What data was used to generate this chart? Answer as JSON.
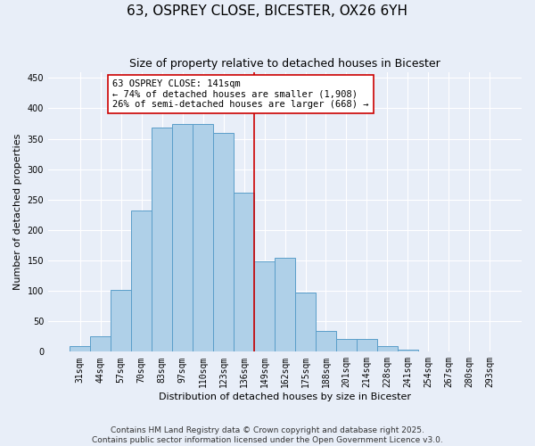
{
  "title": "63, OSPREY CLOSE, BICESTER, OX26 6YH",
  "subtitle": "Size of property relative to detached houses in Bicester",
  "xlabel": "Distribution of detached houses by size in Bicester",
  "ylabel": "Number of detached properties",
  "bar_labels": [
    "31sqm",
    "44sqm",
    "57sqm",
    "70sqm",
    "83sqm",
    "97sqm",
    "110sqm",
    "123sqm",
    "136sqm",
    "149sqm",
    "162sqm",
    "175sqm",
    "188sqm",
    "201sqm",
    "214sqm",
    "228sqm",
    "241sqm",
    "254sqm",
    "267sqm",
    "280sqm",
    "293sqm"
  ],
  "bar_values": [
    9,
    25,
    101,
    232,
    368,
    374,
    374,
    359,
    262,
    148,
    155,
    97,
    34,
    21,
    21,
    9,
    3,
    0,
    0,
    0,
    0
  ],
  "bar_color": "#afd0e8",
  "bar_edge_color": "#5a9ec9",
  "vline_x": 8.5,
  "vline_color": "#cc0000",
  "annotation_line1": "63 OSPREY CLOSE: 141sqm",
  "annotation_line2": "← 74% of detached houses are smaller (1,908)",
  "annotation_line3": "26% of semi-detached houses are larger (668) →",
  "annotation_box_color": "#ffffff",
  "annotation_box_edge_color": "#cc0000",
  "ylim": [
    0,
    460
  ],
  "yticks": [
    0,
    50,
    100,
    150,
    200,
    250,
    300,
    350,
    400,
    450
  ],
  "footer_line1": "Contains HM Land Registry data © Crown copyright and database right 2025.",
  "footer_line2": "Contains public sector information licensed under the Open Government Licence v3.0.",
  "bg_color": "#e8eef8",
  "grid_color": "#ffffff",
  "title_fontsize": 11,
  "subtitle_fontsize": 9,
  "axis_label_fontsize": 8,
  "tick_fontsize": 7,
  "annotation_fontsize": 7.5,
  "footer_fontsize": 6.5
}
